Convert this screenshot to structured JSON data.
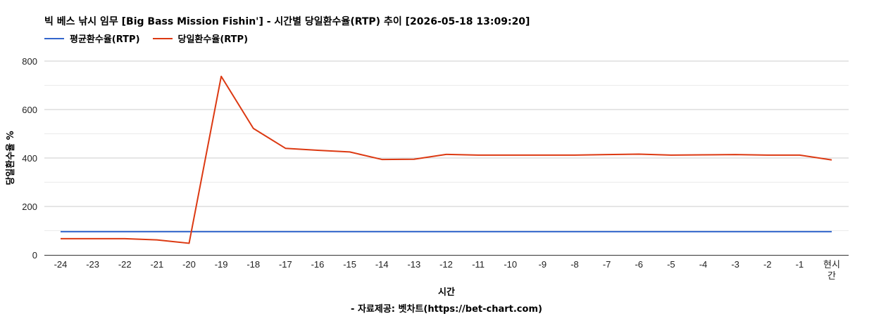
{
  "chart_data": {
    "type": "line",
    "title": "빅 베스 낚시 임무 [Big Bass Mission Fishin'] - 시간별 당일환수율(RTP) 추이 [2026-05-18 13:09:20]",
    "xlabel": "시간",
    "ylabel": "당일환수율 %",
    "categories": [
      "-24",
      "-23",
      "-22",
      "-21",
      "-20",
      "-19",
      "-18",
      "-17",
      "-16",
      "-15",
      "-14",
      "-13",
      "-12",
      "-11",
      "-10",
      "-9",
      "-8",
      "-7",
      "-6",
      "-5",
      "-4",
      "-3",
      "-2",
      "-1",
      "현시간"
    ],
    "ylim": [
      0,
      800
    ],
    "yticks": [
      0,
      200,
      400,
      600,
      800
    ],
    "grid": true,
    "legend_position": "top-left",
    "series": [
      {
        "name": "평균환수율(RTP)",
        "color": "#3366cc",
        "values": [
          96,
          96,
          96,
          96,
          96,
          96,
          96,
          96,
          96,
          96,
          96,
          96,
          96,
          96,
          96,
          96,
          96,
          96,
          96,
          96,
          96,
          96,
          96,
          96,
          96
        ]
      },
      {
        "name": "당일환수율(RTP)",
        "color": "#dc3912",
        "values": [
          67,
          67,
          67,
          62,
          48,
          737,
          522,
          440,
          432,
          425,
          394,
          395,
          415,
          412,
          412,
          412,
          412,
          414,
          416,
          412,
          413,
          414,
          412,
          412,
          392
        ]
      }
    ]
  },
  "footer": {
    "credit": "- 자료제공: 벳차트(https://bet-chart.com)"
  }
}
